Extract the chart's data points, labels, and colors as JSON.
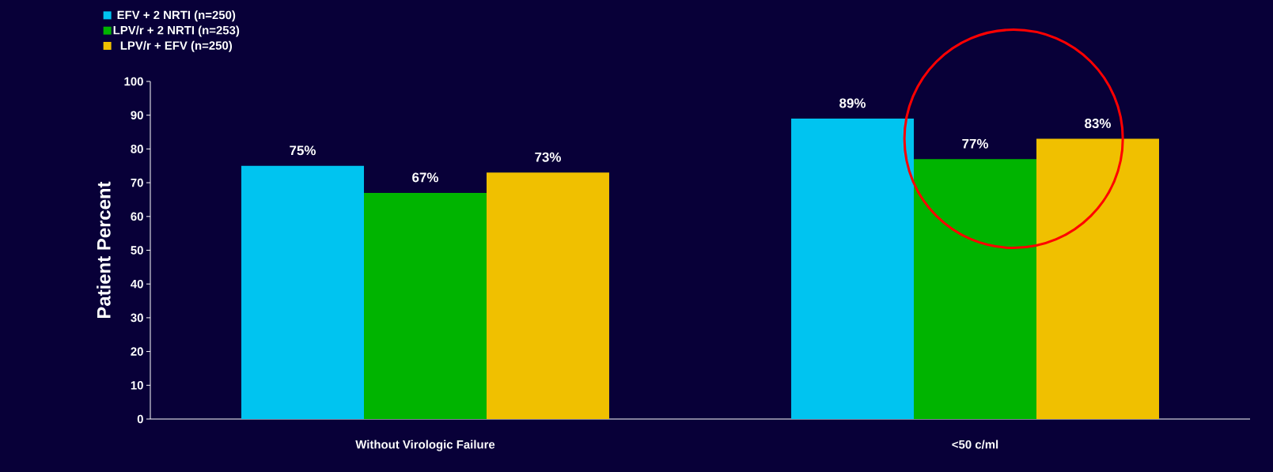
{
  "chart_data": {
    "type": "bar",
    "ylabel": "Patient Percent",
    "categories": [
      "Without Virologic Failure",
      "<50 c/ml"
    ],
    "series": [
      {
        "name": "EFV + 2 NRTI (n=250)",
        "color": "#00c4f0",
        "values": [
          75,
          89
        ],
        "value_labels": [
          "75%",
          "89%"
        ]
      },
      {
        "name": "LPV/r + 2 NRTI (n=253)",
        "color": "#00b400",
        "values": [
          67,
          77
        ],
        "value_labels": [
          "67%",
          "77%"
        ]
      },
      {
        "name": "LPV/r + EFV (n=250)",
        "color": "#f0c000",
        "values": [
          73,
          83
        ],
        "value_labels": [
          "73%",
          "83%"
        ]
      }
    ],
    "ylim": [
      0,
      100
    ],
    "yticks": [
      0,
      10,
      20,
      30,
      40,
      50,
      60,
      70,
      80,
      90,
      100
    ],
    "grid": false,
    "legend": "top left"
  }
}
